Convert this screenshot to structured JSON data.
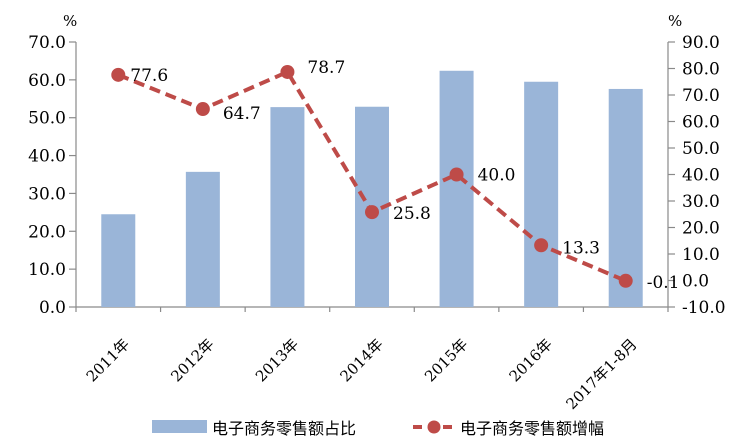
{
  "chart": {
    "colors": {
      "bar": "#9AB5D8",
      "line": "#BE4B48",
      "axis": "#8A8A8A",
      "text": "#000000"
    }
  },
  "chart_data": {
    "type": "combo-bar-line",
    "title": "",
    "categories": [
      "2011年",
      "2012年",
      "2013年",
      "2014年",
      "2015年",
      "2016年",
      "2017年1-8月"
    ],
    "series": [
      {
        "name": "电子商务零售额占比",
        "type": "bar",
        "axis": "left",
        "values": [
          24.5,
          35.7,
          52.8,
          52.9,
          62.4,
          59.5,
          57.6
        ]
      },
      {
        "name": "电子商务零售额增幅",
        "type": "line",
        "axis": "right",
        "values": [
          77.6,
          64.7,
          78.7,
          25.8,
          40.0,
          13.3,
          -0.1
        ],
        "point_labels": [
          "77.6",
          "64.7",
          "78.7",
          "25.8",
          "40.0",
          "13.3",
          "-0.1"
        ]
      }
    ],
    "left_axis": {
      "unit": "%",
      "min": 0,
      "max": 70,
      "ticks": [
        "0.0",
        "10.0",
        "20.0",
        "30.0",
        "40.0",
        "50.0",
        "60.0",
        "70.0"
      ]
    },
    "right_axis": {
      "unit": "%",
      "min": -10,
      "max": 90,
      "ticks": [
        "-10.0",
        "0.0",
        "10.0",
        "20.0",
        "30.0",
        "40.0",
        "50.0",
        "60.0",
        "70.0",
        "80.0",
        "90.0"
      ]
    },
    "grid": false,
    "legend_position": "bottom"
  }
}
